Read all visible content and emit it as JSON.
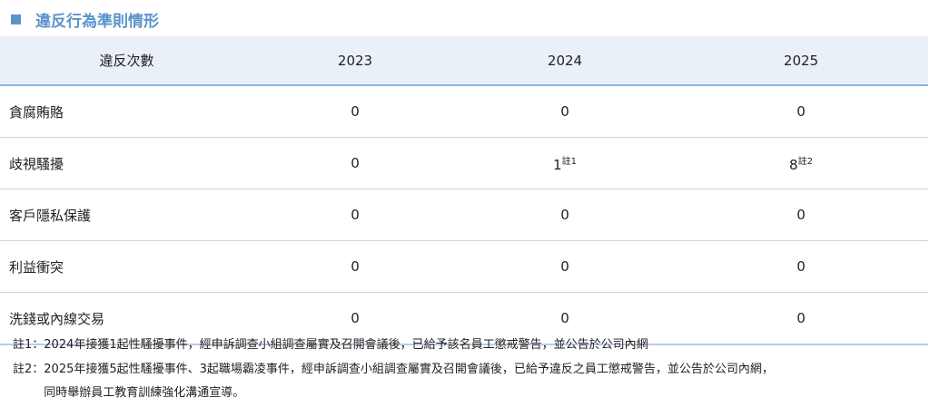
{
  "header": {
    "title": "違反行為準則情形"
  },
  "table": {
    "columns": [
      "違反次數",
      "2023",
      "2024",
      "2025"
    ],
    "rows": [
      [
        "貪腐賄賂",
        0,
        0,
        0
      ],
      [
        "歧視騷擾",
        0,
        {
          "value": 1,
          "note": "註1"
        },
        {
          "value": 8,
          "note": "註2"
        }
      ],
      [
        "客戶隱私保護",
        0,
        0,
        0
      ],
      [
        "利益衝突",
        0,
        0,
        0
      ],
      [
        "洗錢或內線交易",
        0,
        0,
        0
      ]
    ]
  },
  "notes": [
    {
      "label": "註1：",
      "lines": [
        "2024年接獲1起性騷擾事件，經申訴調查小組調查屬實及召開會議後，已給予該名員工懲戒警告，並公告於公司內網"
      ]
    },
    {
      "label": "註2：",
      "lines": [
        "2025年接獲5起性騷擾事件、3起職場霸凌事件，經申訴調查小組調查屬實及召開會議後，已給予違反之員工懲戒警告，並公告於公司內網，",
        "同時舉辦員工教育訓練強化溝通宣導。"
      ]
    }
  ]
}
